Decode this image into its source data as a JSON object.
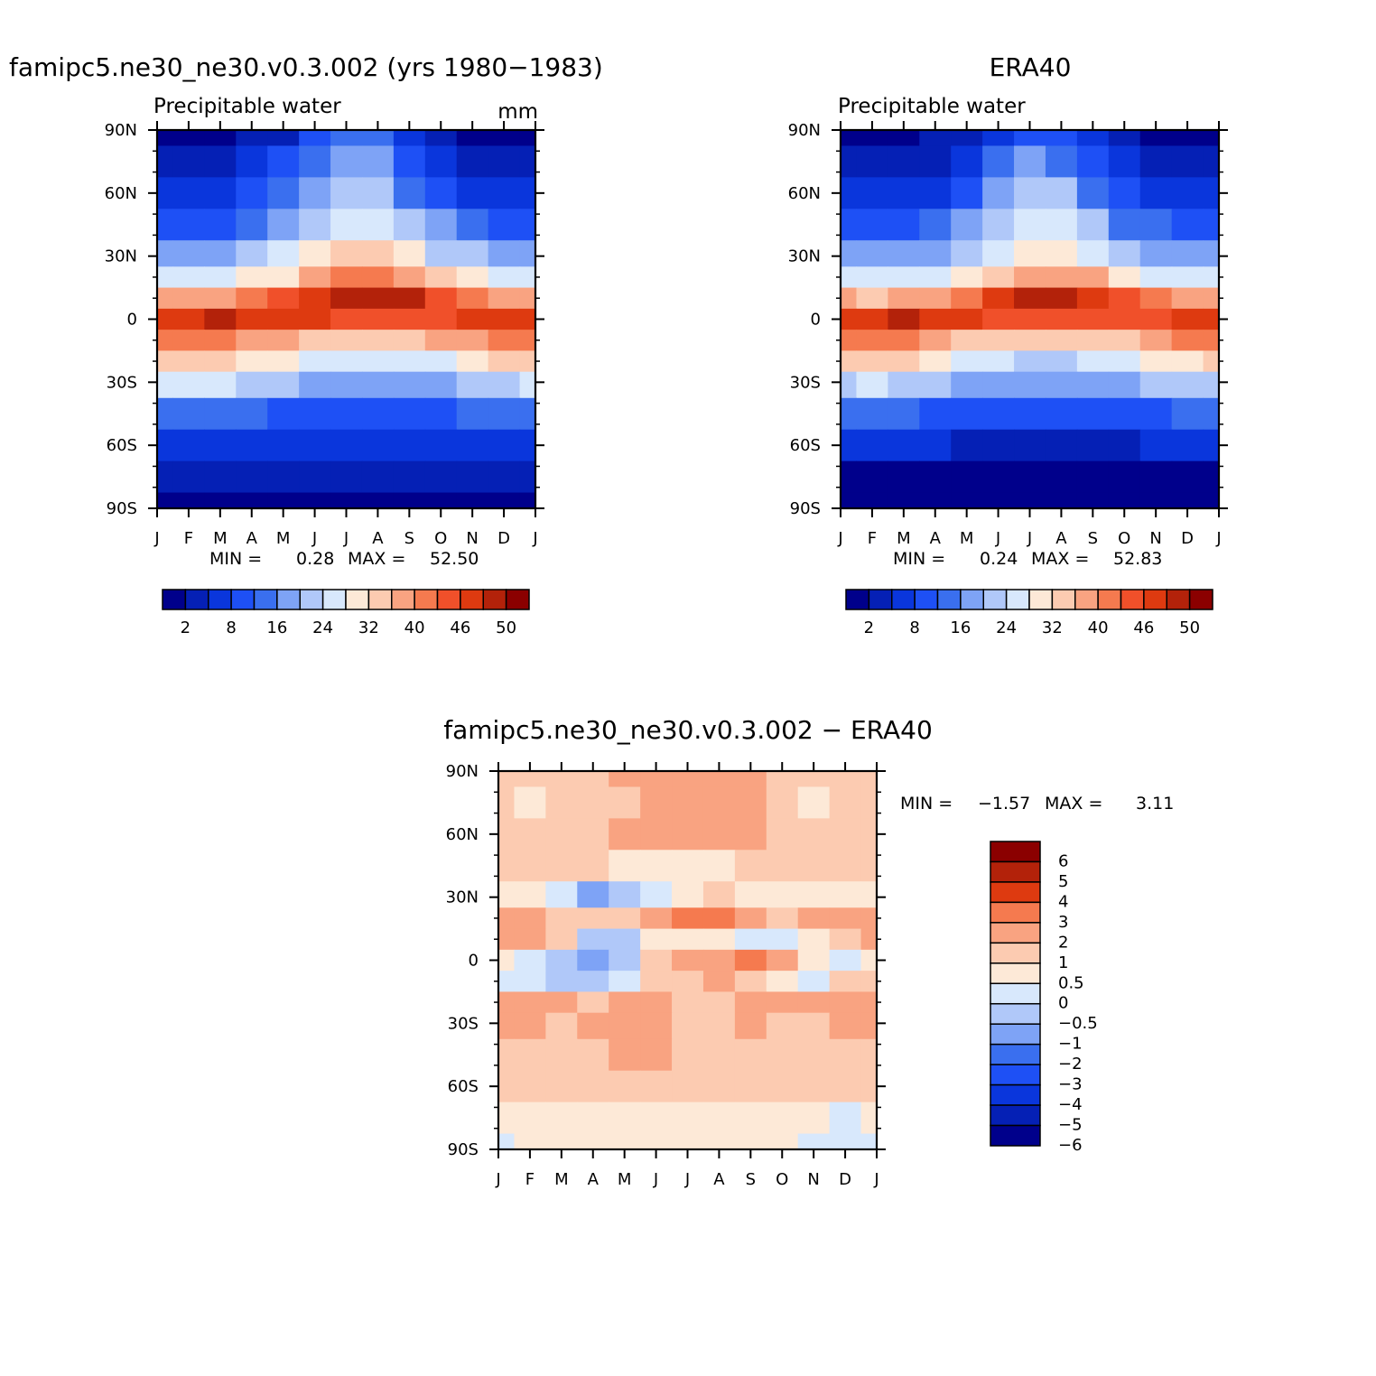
{
  "chart_data": [
    {
      "type": "heatmap",
      "title": "famipc5.ne30_ne30.v0.3.002 (yrs 1980−1983)",
      "subtitle": "Precipitable water",
      "units": "mm",
      "x_ticks": [
        "J",
        "F",
        "M",
        "A",
        "M",
        "J",
        "J",
        "A",
        "S",
        "O",
        "N",
        "D",
        "J"
      ],
      "y_ticks": [
        "90N",
        "60N",
        "30N",
        "0",
        "30S",
        "60S",
        "90S"
      ],
      "stats": {
        "label_min": "MIN =",
        "min": "0.28",
        "label_max": "MAX =",
        "max": "52.50"
      },
      "colorbar_labels": [
        "2",
        "8",
        "16",
        "24",
        "32",
        "40",
        "46",
        "50"
      ],
      "colorbar_colors": [
        "#00008b",
        "#0520b5",
        "#0a36dc",
        "#1e50f5",
        "#3a6fef",
        "#7ea3f6",
        "#b0c8f9",
        "#d8e8fc",
        "#fde9d7",
        "#fccbb1",
        "#f9a381",
        "#f57a4f",
        "#f0502a",
        "#de3a10",
        "#b3220a",
        "#8b0000"
      ],
      "lat": [
        90,
        75,
        60,
        45,
        30,
        20,
        10,
        0,
        -10,
        -20,
        -30,
        -45,
        -60,
        -75,
        -90
      ],
      "months": [
        "Jan",
        "Feb",
        "Mar",
        "Apr",
        "May",
        "Jun",
        "Jul",
        "Aug",
        "Sep",
        "Oct",
        "Nov",
        "Dec",
        "Jan"
      ],
      "values": [
        [
          2,
          2,
          2,
          3,
          5,
          9,
          14,
          13,
          8,
          4,
          2,
          2,
          2
        ],
        [
          4,
          4,
          4,
          6,
          9,
          14,
          18,
          17,
          12,
          7,
          5,
          4,
          4
        ],
        [
          7,
          7,
          7,
          9,
          13,
          18,
          23,
          22,
          16,
          11,
          8,
          7,
          7
        ],
        [
          12,
          12,
          12,
          14,
          18,
          23,
          28,
          28,
          22,
          17,
          14,
          12,
          12
        ],
        [
          19,
          18,
          19,
          21,
          25,
          29,
          33,
          33,
          29,
          24,
          21,
          19,
          19
        ],
        [
          27,
          26,
          27,
          29,
          32,
          37,
          41,
          41,
          38,
          33,
          29,
          27,
          27
        ],
        [
          38,
          37,
          38,
          41,
          44,
          48,
          50,
          50,
          49,
          46,
          43,
          39,
          38
        ],
        [
          47,
          48,
          50,
          48,
          48,
          47,
          46,
          46,
          45,
          46,
          47,
          48,
          47
        ],
        [
          43,
          43,
          42,
          40,
          37,
          35,
          34,
          34,
          35,
          37,
          40,
          42,
          43
        ],
        [
          34,
          35,
          34,
          32,
          29,
          26,
          25,
          25,
          26,
          28,
          31,
          33,
          34
        ],
        [
          25,
          26,
          25,
          23,
          21,
          19,
          18,
          18,
          19,
          20,
          22,
          24,
          25
        ],
        [
          14,
          14,
          14,
          13,
          12,
          11,
          11,
          11,
          11,
          12,
          13,
          14,
          14
        ],
        [
          7,
          7,
          7,
          7,
          6,
          6,
          6,
          6,
          6,
          6,
          7,
          7,
          7
        ],
        [
          3,
          3,
          3,
          3,
          3,
          3,
          3,
          3,
          3,
          3,
          3,
          3,
          3
        ],
        [
          1,
          1,
          1,
          1,
          1,
          1,
          1,
          1,
          1,
          1,
          1,
          1,
          1
        ]
      ]
    },
    {
      "type": "heatmap",
      "title": "ERA40",
      "subtitle": "Precipitable water",
      "units": "",
      "x_ticks": [
        "J",
        "F",
        "M",
        "A",
        "M",
        "J",
        "J",
        "A",
        "S",
        "O",
        "N",
        "D",
        "J"
      ],
      "y_ticks": [
        "90N",
        "60N",
        "30N",
        "0",
        "30S",
        "60S",
        "90S"
      ],
      "stats": {
        "label_min": "MIN =",
        "min": "0.24",
        "label_max": "MAX =",
        "max": "52.83"
      },
      "colorbar_labels": [
        "2",
        "8",
        "16",
        "24",
        "32",
        "40",
        "46",
        "50"
      ],
      "colorbar_colors": [
        "#00008b",
        "#0520b5",
        "#0a36dc",
        "#1e50f5",
        "#3a6fef",
        "#7ea3f6",
        "#b0c8f9",
        "#d8e8fc",
        "#fde9d7",
        "#fccbb1",
        "#f9a381",
        "#f57a4f",
        "#f0502a",
        "#de3a10",
        "#b3220a",
        "#8b0000"
      ],
      "lat": [
        90,
        75,
        60,
        45,
        30,
        20,
        10,
        0,
        -10,
        -20,
        -30,
        -45,
        -60,
        -75,
        -90
      ],
      "months": [
        "Jan",
        "Feb",
        "Mar",
        "Apr",
        "May",
        "Jun",
        "Jul",
        "Aug",
        "Sep",
        "Oct",
        "Nov",
        "Dec",
        "Jan"
      ],
      "values": [
        [
          1,
          2,
          2,
          3,
          4,
          8,
          12,
          12,
          7,
          3,
          2,
          1,
          1
        ],
        [
          3,
          3,
          4,
          5,
          8,
          13,
          17,
          16,
          11,
          6,
          4,
          3,
          3
        ],
        [
          6,
          6,
          7,
          8,
          12,
          17,
          22,
          21,
          15,
          10,
          7,
          6,
          6
        ],
        [
          11,
          11,
          11,
          13,
          17,
          22,
          27,
          27,
          21,
          16,
          13,
          11,
          11
        ],
        [
          18,
          17,
          18,
          20,
          24,
          28,
          31,
          31,
          28,
          23,
          20,
          18,
          18
        ],
        [
          26,
          25,
          26,
          28,
          31,
          35,
          39,
          40,
          37,
          32,
          28,
          26,
          26
        ],
        [
          37,
          36,
          37,
          40,
          43,
          47,
          50,
          50,
          48,
          45,
          42,
          38,
          37
        ],
        [
          47,
          48,
          50,
          48,
          47,
          46,
          45,
          45,
          44,
          45,
          46,
          47,
          47
        ],
        [
          42,
          42,
          41,
          39,
          36,
          34,
          33,
          33,
          34,
          36,
          39,
          41,
          42
        ],
        [
          33,
          34,
          33,
          31,
          28,
          25,
          24,
          24,
          25,
          27,
          30,
          32,
          33
        ],
        [
          24,
          25,
          24,
          22,
          20,
          18,
          17,
          17,
          18,
          19,
          21,
          23,
          24
        ],
        [
          13,
          13,
          13,
          12,
          11,
          10,
          10,
          10,
          10,
          11,
          12,
          13,
          13
        ],
        [
          6,
          6,
          6,
          6,
          5,
          5,
          5,
          5,
          5,
          5,
          6,
          6,
          6
        ],
        [
          2,
          2,
          2,
          2,
          2,
          2,
          2,
          2,
          2,
          2,
          2,
          2,
          2
        ],
        [
          1,
          1,
          1,
          1,
          1,
          1,
          1,
          1,
          1,
          1,
          1,
          1,
          1
        ]
      ]
    },
    {
      "type": "heatmap",
      "title": "famipc5.ne30_ne30.v0.3.002 − ERA40",
      "x_ticks": [
        "J",
        "F",
        "M",
        "A",
        "M",
        "J",
        "J",
        "A",
        "S",
        "O",
        "N",
        "D",
        "J"
      ],
      "y_ticks": [
        "90N",
        "60N",
        "30N",
        "0",
        "30S",
        "60S",
        "90S"
      ],
      "stats": {
        "label_min": "MIN =",
        "min": "−1.57",
        "label_max": "MAX =",
        "max": "3.11"
      },
      "colorbar_labels": [
        "6",
        "5",
        "4",
        "3",
        "2",
        "1",
        "0.5",
        "0",
        "−0.5",
        "−1",
        "−2",
        "−3",
        "−4",
        "−5",
        "−6"
      ],
      "colorbar_colors": [
        "#8b0000",
        "#b3220a",
        "#de3a10",
        "#f57a4f",
        "#f9a381",
        "#fccbb1",
        "#fde9d7",
        "#d8e8fc",
        "#b0c8f9",
        "#7ea3f6",
        "#3a6fef",
        "#1e50f5",
        "#0a36dc",
        "#0520b5",
        "#00008b"
      ],
      "lat": [
        90,
        75,
        60,
        45,
        30,
        20,
        10,
        0,
        -10,
        -20,
        -30,
        -45,
        -60,
        -75,
        -90
      ],
      "months": [
        "Jan",
        "Feb",
        "Mar",
        "Apr",
        "May",
        "Jun",
        "Jul",
        "Aug",
        "Sep",
        "Oct",
        "Nov",
        "Dec",
        "Jan"
      ],
      "values": [
        [
          0.8,
          0.8,
          1.0,
          0.9,
          1.1,
          1.3,
          1.4,
          1.6,
          1.4,
          1.0,
          0.8,
          0.8,
          0.8
        ],
        [
          0.8,
          0.4,
          0.9,
          0.8,
          1.0,
          1.3,
          1.5,
          1.4,
          1.2,
          0.6,
          0.4,
          0.9,
          0.8
        ],
        [
          0.7,
          0.8,
          0.9,
          0.9,
          1.1,
          1.3,
          1.8,
          1.4,
          1.1,
          0.8,
          0.7,
          0.8,
          0.7
        ],
        [
          0.7,
          0.7,
          0.7,
          0.6,
          0.4,
          0.3,
          0.2,
          0.4,
          0.6,
          0.8,
          0.7,
          0.6,
          0.7
        ],
        [
          0.5,
          0.3,
          -0.4,
          -1.1,
          -0.8,
          -0.4,
          0.4,
          0.6,
          0.4,
          0.2,
          0.2,
          0.3,
          0.5
        ],
        [
          1.2,
          1.1,
          0.8,
          0.8,
          1.0,
          1.6,
          2.2,
          2.1,
          1.3,
          1.0,
          1.1,
          1.2,
          1.2
        ],
        [
          1.1,
          1.8,
          1.0,
          -0.6,
          -0.8,
          0.3,
          0.3,
          0.2,
          -0.2,
          -0.3,
          0.3,
          0.8,
          1.1
        ],
        [
          0.2,
          -0.2,
          -0.6,
          -1.2,
          -0.9,
          0.6,
          1.1,
          1.8,
          2.3,
          1.3,
          0.4,
          -0.3,
          0.2
        ],
        [
          -0.2,
          -0.4,
          -0.5,
          -0.7,
          -0.3,
          0.6,
          1.0,
          1.1,
          0.9,
          0.5,
          -0.3,
          0.6,
          0.8
        ],
        [
          1.2,
          1.4,
          1.2,
          1.0,
          1.1,
          1.2,
          1.0,
          1.0,
          1.1,
          1.2,
          1.1,
          1.3,
          1.5
        ],
        [
          1.3,
          1.1,
          1.0,
          1.1,
          1.2,
          1.1,
          1.0,
          1.0,
          1.1,
          1.0,
          1.0,
          1.1,
          1.1
        ],
        [
          1.0,
          1.0,
          0.9,
          1.0,
          1.1,
          1.1,
          1.0,
          1.0,
          1.0,
          0.9,
          0.9,
          0.9,
          0.9
        ],
        [
          0.8,
          0.8,
          0.8,
          0.8,
          0.8,
          0.7,
          0.7,
          0.7,
          0.7,
          0.6,
          0.6,
          0.6,
          0.7
        ],
        [
          0.3,
          0.4,
          0.3,
          0.4,
          0.4,
          0.4,
          0.3,
          0.3,
          0.3,
          0.2,
          0.1,
          -0.1,
          0.2
        ],
        [
          -0.1,
          0.2,
          0.2,
          0.2,
          0.2,
          0.2,
          0.2,
          0.2,
          0.2,
          0.1,
          -0.2,
          -0.3,
          -0.2
        ]
      ]
    }
  ]
}
